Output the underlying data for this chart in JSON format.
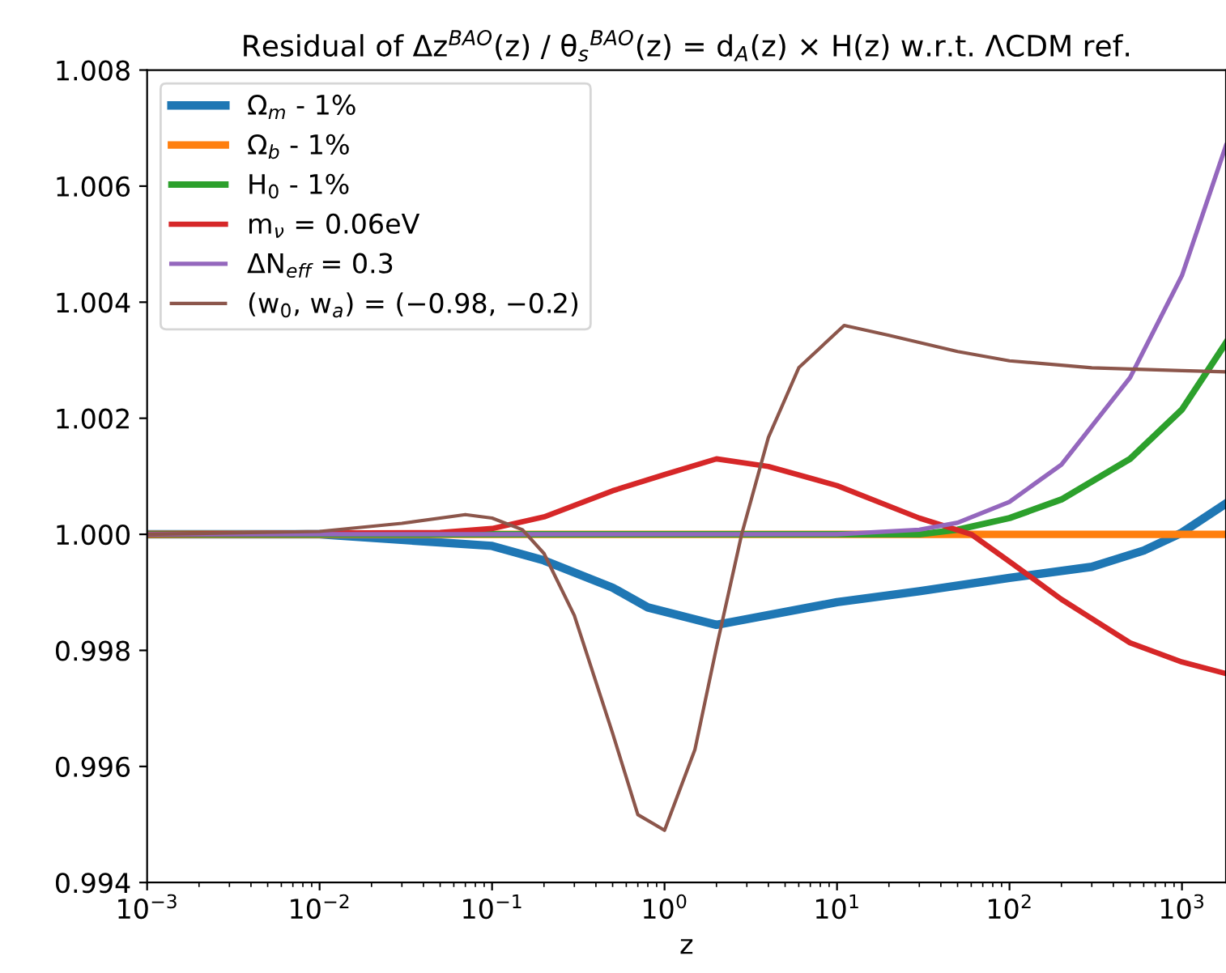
{
  "chart_data": {
    "type": "line",
    "title": "Residual of Δz$^{BAO}$(z) / θ$_{s}$$^{BAO}$(z) = d$_{A}$(z) × H(z) w.r.t. ΛCDM ref.",
    "xlabel": "z",
    "log": "x",
    "legend": "top left",
    "grid": false,
    "marker": "none",
    "line_style": "solid",
    "xlim": [
      0.001,
      1800
    ],
    "xticks": [
      {
        "value": 0.001,
        "label": "10$^{−3}$"
      },
      {
        "value": 0.01,
        "label": "10$^{−2}$"
      },
      {
        "value": 0.1,
        "label": "10$^{−1}$"
      },
      {
        "value": 1,
        "label": "10$^{0}$"
      },
      {
        "value": 10,
        "label": "10$^{1}$"
      },
      {
        "value": 100,
        "label": "10$^{2}$"
      },
      {
        "value": 1000,
        "label": "10$^{3}$"
      }
    ],
    "ylim": [
      0.994,
      1.008
    ],
    "yticks": [
      {
        "value": 0.994,
        "label": "0.994"
      },
      {
        "value": 0.996,
        "label": "0.996"
      },
      {
        "value": 0.998,
        "label": "0.998"
      },
      {
        "value": 1.0,
        "label": "1.000"
      },
      {
        "value": 1.002,
        "label": "1.002"
      },
      {
        "value": 1.004,
        "label": "1.004"
      },
      {
        "value": 1.006,
        "label": "1.006"
      },
      {
        "value": 1.008,
        "label": "1.008"
      }
    ],
    "series": [
      {
        "name": "Ω$_{m}$ - 1%",
        "color": "#1f77b4",
        "x": [
          0.001,
          0.01,
          0.1,
          0.2,
          0.5,
          0.8,
          2,
          10,
          30,
          100,
          300,
          600,
          1000,
          1800
        ],
        "values": [
          1.0,
          1.0,
          0.9998,
          0.99955,
          0.99908,
          0.99874,
          0.99844,
          0.99883,
          0.99902,
          0.99925,
          0.99944,
          0.99972,
          1.00003,
          1.00053
        ]
      },
      {
        "name": "Ω$_{b}$ - 1%",
        "color": "#ff7f0e",
        "x": [
          0.001,
          1800
        ],
        "values": [
          1.0,
          1.0
        ]
      },
      {
        "name": "H$_{0}$ - 1%",
        "color": "#2ca02c",
        "x": [
          0.001,
          5,
          30,
          50,
          100,
          200,
          500,
          1000,
          1800
        ],
        "values": [
          1.0,
          1.0,
          1.0,
          1.00008,
          1.00028,
          1.0006,
          1.0013,
          1.00215,
          1.0033
        ]
      },
      {
        "name": "m$_{ν}$ = 0.06eV",
        "color": "#d62728",
        "x": [
          0.001,
          0.01,
          0.05,
          0.1,
          0.2,
          0.5,
          1,
          2,
          4,
          10,
          30,
          60,
          100,
          200,
          500,
          1000,
          1800
        ],
        "values": [
          1.0,
          1.00002,
          1.00003,
          1.0001,
          1.0003,
          1.00075,
          1.00103,
          1.0013,
          1.00117,
          1.00084,
          1.00028,
          1.0,
          0.99953,
          0.99888,
          0.99813,
          0.9978,
          0.9976
        ]
      },
      {
        "name": "ΔN$_{eff}$ = 0.3",
        "color": "#9467bd",
        "x": [
          0.001,
          10,
          30,
          50,
          100,
          200,
          500,
          1000,
          1800
        ],
        "values": [
          1.0,
          1.0,
          1.00008,
          1.0002,
          1.00056,
          1.0012,
          1.0027,
          1.00446,
          1.0067
        ]
      },
      {
        "name": "(w$_{0}$, w$_{a}$) = (−0.98, −0.2)",
        "color": "#8c564b",
        "x": [
          0.001,
          0.01,
          0.03,
          0.07,
          0.1,
          0.15,
          0.2,
          0.3,
          0.5,
          0.7,
          1,
          1.5,
          2,
          2.8,
          4,
          6,
          11,
          20,
          50,
          100,
          300,
          1000,
          1800
        ],
        "values": [
          1.0,
          1.00005,
          1.00019,
          1.00034,
          1.00028,
          1.00008,
          0.99967,
          0.9986,
          0.99657,
          0.99517,
          0.9949,
          0.99629,
          0.99805,
          1.0,
          1.00167,
          1.00287,
          1.0036,
          1.00343,
          1.00315,
          1.00299,
          1.00287,
          1.00282,
          1.0028
        ]
      }
    ]
  }
}
